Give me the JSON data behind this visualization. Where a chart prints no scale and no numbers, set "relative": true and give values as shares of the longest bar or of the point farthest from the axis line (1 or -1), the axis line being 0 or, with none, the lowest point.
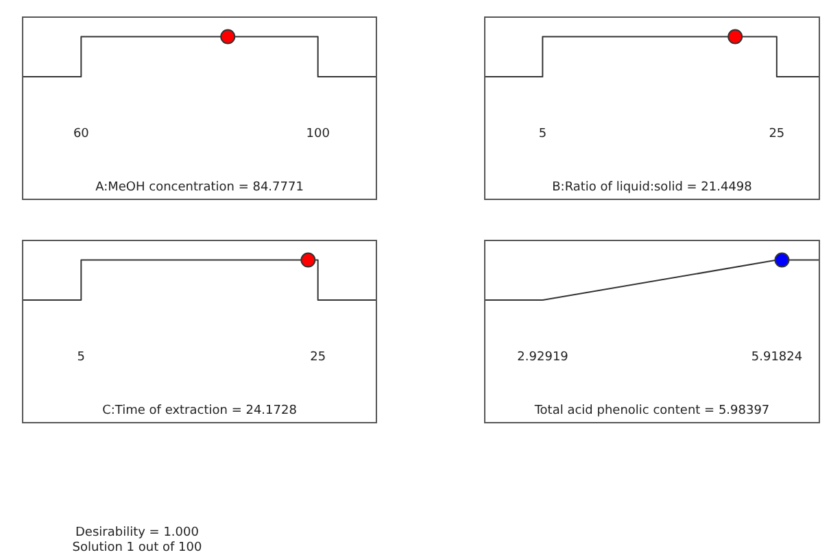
{
  "chart_data": [
    {
      "type": "line",
      "relative": true,
      "xlabel": "A:MeOH concentration = 84.7771",
      "xlim": [
        50,
        110
      ],
      "xticks": [
        60,
        100
      ],
      "tick_labels": "x",
      "legend": false,
      "grid": false,
      "series": [
        {
          "type": "line",
          "color": "#333333",
          "marker": "none",
          "x": [
            50,
            60,
            60,
            100,
            100,
            110
          ],
          "values": [
            0,
            0,
            1,
            1,
            0,
            0
          ]
        },
        {
          "type": "scatter",
          "color": "#ff0000",
          "marker": "circle",
          "x": [
            84.7771
          ],
          "values": [
            1
          ]
        }
      ]
    },
    {
      "type": "line",
      "relative": true,
      "xlabel": "B:Ratio of liquid:solid = 21.4498",
      "xlim": [
        0,
        28.7
      ],
      "xticks": [
        5,
        25
      ],
      "tick_labels": "x",
      "legend": false,
      "grid": false,
      "series": [
        {
          "type": "line",
          "color": "#333333",
          "marker": "none",
          "x": [
            0,
            5,
            5,
            25,
            25,
            28.7
          ],
          "values": [
            0,
            0,
            1,
            1,
            0,
            0
          ]
        },
        {
          "type": "scatter",
          "color": "#ff0000",
          "marker": "circle",
          "x": [
            21.4498
          ],
          "values": [
            1
          ]
        }
      ]
    },
    {
      "type": "line",
      "relative": true,
      "xlabel": "C:Time of extraction = 24.1728",
      "xlim": [
        0,
        30
      ],
      "xticks": [
        5,
        25
      ],
      "tick_labels": "x",
      "legend": false,
      "grid": false,
      "series": [
        {
          "type": "line",
          "color": "#333333",
          "marker": "none",
          "x": [
            0,
            5,
            5,
            25,
            25,
            30
          ],
          "values": [
            0,
            0,
            1,
            1,
            0,
            0
          ]
        },
        {
          "type": "scatter",
          "color": "#ff0000",
          "marker": "circle",
          "x": [
            24.1728
          ],
          "values": [
            1
          ]
        }
      ]
    },
    {
      "type": "line",
      "relative": true,
      "xlabel": "Total acid phenolic content = 5.98397",
      "xlim": [
        2.18,
        6.47
      ],
      "xticks": [
        2.92919,
        5.91824
      ],
      "tick_labels": "x",
      "legend": false,
      "grid": false,
      "annotations": [
        "Desirability = 1.000",
        "Solution 1 out of 100"
      ],
      "series": [
        {
          "type": "line",
          "color": "#333333",
          "marker": "none",
          "x": [
            2.18,
            2.92919,
            5.91824,
            6.47
          ],
          "values": [
            0,
            0,
            1,
            1
          ]
        },
        {
          "type": "scatter",
          "color": "#0000ff",
          "marker": "circle",
          "x": [
            5.98397
          ],
          "values": [
            1
          ]
        }
      ]
    }
  ]
}
